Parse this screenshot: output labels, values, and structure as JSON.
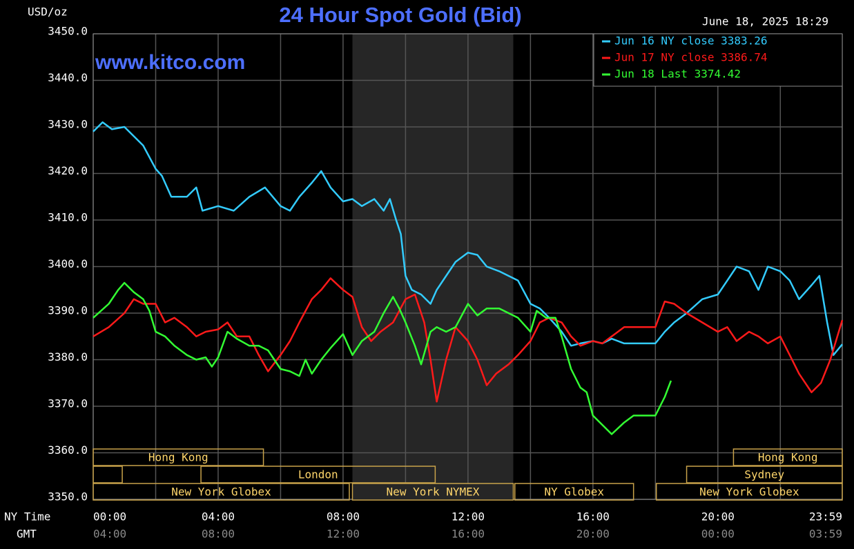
{
  "chart_data": {
    "type": "line",
    "title": "24 Hour Spot Gold (Bid)",
    "y_unit": "USD/oz",
    "watermark": "www.kitco.com",
    "timestamp": "June 18, 2025 18:29",
    "x_axis_label": "NY Time",
    "x2_axis_label": "GMT",
    "xlim": [
      0,
      23.983
    ],
    "xticks": [
      {
        "value": 0,
        "label": "00:00"
      },
      {
        "value": 4,
        "label": "04:00"
      },
      {
        "value": 8,
        "label": "08:00"
      },
      {
        "value": 12,
        "label": "12:00"
      },
      {
        "value": 16,
        "label": "16:00"
      },
      {
        "value": 20,
        "label": "20:00"
      },
      {
        "value": 23.983,
        "label": "23:59"
      }
    ],
    "x2ticklabels": [
      "04:00",
      "08:00",
      "12:00",
      "16:00",
      "20:00",
      "00:00",
      "03:59"
    ],
    "xminorticks": [
      2,
      6,
      10,
      14,
      18,
      22
    ],
    "ylim": [
      3350,
      3450
    ],
    "yticks": [
      {
        "value": 3350,
        "label": "3350.0"
      },
      {
        "value": 3360,
        "label": "3360.0"
      },
      {
        "value": 3370,
        "label": "3370.0"
      },
      {
        "value": 3380,
        "label": "3380.0"
      },
      {
        "value": 3390,
        "label": "3390.0"
      },
      {
        "value": 3400,
        "label": "3400.0"
      },
      {
        "value": 3410,
        "label": "3410.0"
      },
      {
        "value": 3420,
        "label": "3420.0"
      },
      {
        "value": 3430,
        "label": "3430.0"
      },
      {
        "value": 3440,
        "label": "3440.0"
      },
      {
        "value": 3450,
        "label": "3450.0"
      }
    ],
    "grid": true,
    "legend": "top-right",
    "sessions": [
      {
        "name": "Hong Kong",
        "start": 0,
        "end": 5.45,
        "row": 0
      },
      {
        "name": "Hong Kong",
        "start": 20.5,
        "end": 23.983,
        "row": 0
      },
      {
        "name": null,
        "start": 0,
        "end": 0.93,
        "row": 1
      },
      {
        "name": "London",
        "start": 3.45,
        "end": 10.95,
        "row": 1
      },
      {
        "name": "Sydney",
        "start": 19.0,
        "end": 23.983,
        "row": 1
      },
      {
        "name": "New York Globex",
        "start": 0,
        "end": 8.2,
        "row": 2
      },
      {
        "name": "New York NYMEX",
        "start": 8.3,
        "end": 13.45,
        "row": 2,
        "shaded": true
      },
      {
        "name": "NY Globex",
        "start": 13.5,
        "end": 17.3,
        "row": 2
      },
      {
        "name": "New York Globex",
        "start": 18.03,
        "end": 23.983,
        "row": 2
      }
    ],
    "series": [
      {
        "name": "Jun 16 NY close 3383.26",
        "color": "#33ccff",
        "x": [
          0,
          0.3,
          0.6,
          1.0,
          1.3,
          1.6,
          2.0,
          2.2,
          2.5,
          3.0,
          3.3,
          3.5,
          4.0,
          4.5,
          5.0,
          5.5,
          6.0,
          6.3,
          6.6,
          7.0,
          7.3,
          7.6,
          8.0,
          8.3,
          8.6,
          9.0,
          9.3,
          9.5,
          9.7,
          9.85,
          10.0,
          10.2,
          10.5,
          10.8,
          11.0,
          11.3,
          11.6,
          12.0,
          12.3,
          12.6,
          13.0,
          13.3,
          13.6,
          14.0,
          14.3,
          14.6,
          15.0,
          15.3,
          15.6,
          16.0,
          16.3,
          16.6,
          17.0,
          17.5,
          18.0,
          18.3,
          18.6,
          19.0,
          19.5,
          20.0,
          20.3,
          20.6,
          21.0,
          21.3,
          21.6,
          22.0,
          22.3,
          22.6,
          23.0,
          23.25,
          23.5,
          23.7,
          23.983
        ],
        "values": [
          3429,
          3431,
          3429.5,
          3430,
          3428,
          3426,
          3421,
          3419.5,
          3415,
          3415,
          3417,
          3412,
          3413,
          3412,
          3415,
          3417,
          3413,
          3412,
          3415,
          3418,
          3420.5,
          3417,
          3414,
          3414.5,
          3413,
          3414.5,
          3412,
          3414.5,
          3410,
          3407,
          3398,
          3395,
          3394,
          3392,
          3395,
          3398,
          3401,
          3403,
          3402.5,
          3400,
          3399,
          3398,
          3397,
          3392,
          3391,
          3389,
          3386,
          3383,
          3383.5,
          3384,
          3383.5,
          3384.5,
          3383.5,
          3383.5,
          3383.5,
          3386,
          3388,
          3390,
          3393,
          3394,
          3397,
          3400,
          3399,
          3395,
          3400,
          3399,
          3397,
          3393,
          3396,
          3398,
          3388,
          3381,
          3383.3
        ]
      },
      {
        "name": "Jun 17 NY close 3386.74",
        "color": "#ff1a1a",
        "x": [
          0,
          0.5,
          1.0,
          1.3,
          1.6,
          2.0,
          2.3,
          2.6,
          3.0,
          3.3,
          3.6,
          4.0,
          4.3,
          4.6,
          5.0,
          5.3,
          5.6,
          6.0,
          6.3,
          6.6,
          7.0,
          7.3,
          7.6,
          8.0,
          8.3,
          8.6,
          8.9,
          9.2,
          9.6,
          10.0,
          10.3,
          10.6,
          10.8,
          11.0,
          11.3,
          11.6,
          12.0,
          12.3,
          12.6,
          12.9,
          13.3,
          13.6,
          14.0,
          14.3,
          14.6,
          15.0,
          15.3,
          15.6,
          16.0,
          16.3,
          16.6,
          17.0,
          17.5,
          18.0,
          18.3,
          18.6,
          19.0,
          19.5,
          20.0,
          20.3,
          20.6,
          21.0,
          21.3,
          21.6,
          22.0,
          22.3,
          22.6,
          23.0,
          23.3,
          23.6,
          23.983
        ],
        "values": [
          3385,
          3387,
          3390,
          3393,
          3392,
          3392,
          3388,
          3389,
          3387,
          3385,
          3386,
          3386.5,
          3388,
          3385,
          3385,
          3381,
          3377.5,
          3381,
          3384,
          3388,
          3393,
          3395,
          3397.5,
          3395,
          3393.5,
          3387,
          3384,
          3386,
          3388,
          3393,
          3394,
          3388,
          3380,
          3371,
          3380,
          3387,
          3384,
          3380,
          3374.5,
          3377,
          3379,
          3381,
          3384,
          3388,
          3389,
          3388,
          3385,
          3383,
          3384,
          3383.5,
          3385,
          3387,
          3387,
          3387,
          3392.5,
          3392,
          3390,
          3388,
          3386,
          3387,
          3384,
          3386,
          3385,
          3383.5,
          3385,
          3381,
          3377,
          3373,
          3375,
          3380,
          3388.5
        ]
      },
      {
        "name": "Jun 18 Last 3374.42",
        "color": "#33ff33",
        "x": [
          0,
          0.5,
          0.8,
          1.0,
          1.3,
          1.6,
          1.8,
          2.0,
          2.3,
          2.6,
          3.0,
          3.3,
          3.6,
          3.8,
          4.0,
          4.3,
          4.6,
          5.0,
          5.3,
          5.6,
          6.0,
          6.3,
          6.6,
          6.8,
          7.0,
          7.3,
          7.6,
          8.0,
          8.3,
          8.6,
          9.0,
          9.3,
          9.6,
          9.8,
          10.0,
          10.3,
          10.5,
          10.8,
          11.0,
          11.3,
          11.6,
          12.0,
          12.3,
          12.6,
          13.0,
          13.3,
          13.6,
          14.0,
          14.2,
          14.5,
          14.8,
          15.0,
          15.3,
          15.6,
          15.8,
          16.0,
          16.3,
          16.6,
          17.0,
          17.3,
          17.6,
          18.0,
          18.3,
          18.5
        ],
        "values": [
          3389,
          3392,
          3395,
          3396.5,
          3394.5,
          3393,
          3390.5,
          3386,
          3385,
          3383,
          3381,
          3380,
          3380.5,
          3378.5,
          3380.5,
          3386,
          3384.5,
          3383,
          3383,
          3382,
          3378,
          3377.5,
          3376.5,
          3380,
          3377,
          3380,
          3382.5,
          3385.5,
          3381,
          3384,
          3386,
          3390,
          3393.5,
          3391,
          3388,
          3383,
          3379,
          3386,
          3387,
          3386,
          3387,
          3392,
          3389.5,
          3391,
          3391,
          3390,
          3389,
          3386,
          3390.5,
          3389,
          3389,
          3385,
          3378,
          3374,
          3373,
          3368,
          3366,
          3364,
          3366.5,
          3368,
          3368,
          3368,
          3372,
          3375.5
        ]
      }
    ]
  }
}
